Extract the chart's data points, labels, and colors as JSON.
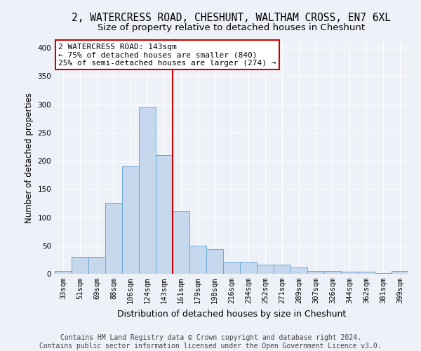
{
  "title_line1": "2, WATERCRESS ROAD, CHESHUNT, WALTHAM CROSS, EN7 6XL",
  "title_line2": "Size of property relative to detached houses in Cheshunt",
  "xlabel": "Distribution of detached houses by size in Cheshunt",
  "ylabel": "Number of detached properties",
  "footer_line1": "Contains HM Land Registry data © Crown copyright and database right 2024.",
  "footer_line2": "Contains public sector information licensed under the Open Government Licence v3.0.",
  "bar_labels": [
    "33sqm",
    "51sqm",
    "69sqm",
    "88sqm",
    "106sqm",
    "124sqm",
    "143sqm",
    "161sqm",
    "179sqm",
    "198sqm",
    "216sqm",
    "234sqm",
    "252sqm",
    "271sqm",
    "289sqm",
    "307sqm",
    "326sqm",
    "344sqm",
    "362sqm",
    "381sqm",
    "399sqm"
  ],
  "bar_values": [
    5,
    30,
    30,
    125,
    190,
    295,
    210,
    110,
    50,
    43,
    21,
    21,
    16,
    16,
    11,
    5,
    5,
    4,
    4,
    1,
    5
  ],
  "bar_color": "#c5d8ee",
  "bar_edge_color": "#6aaad4",
  "annotation_line1": "2 WATERCRESS ROAD: 143sqm",
  "annotation_line2": "← 75% of detached houses are smaller (840)",
  "annotation_line3": "25% of semi-detached houses are larger (274) →",
  "annotation_box_facecolor": "#ffffff",
  "annotation_box_edgecolor": "#cc0000",
  "vline_color": "#cc0000",
  "vline_x_index": 6,
  "ylim": [
    0,
    410
  ],
  "yticks": [
    0,
    50,
    100,
    150,
    200,
    250,
    300,
    350,
    400
  ],
  "fig_facecolor": "#eef2f8",
  "ax_facecolor": "#eef2f8",
  "grid_color": "#ffffff",
  "title1_fontsize": 10.5,
  "title2_fontsize": 9.5,
  "xlabel_fontsize": 9,
  "ylabel_fontsize": 8.5,
  "tick_fontsize": 7.5,
  "annotation_fontsize": 8,
  "footer_fontsize": 7
}
